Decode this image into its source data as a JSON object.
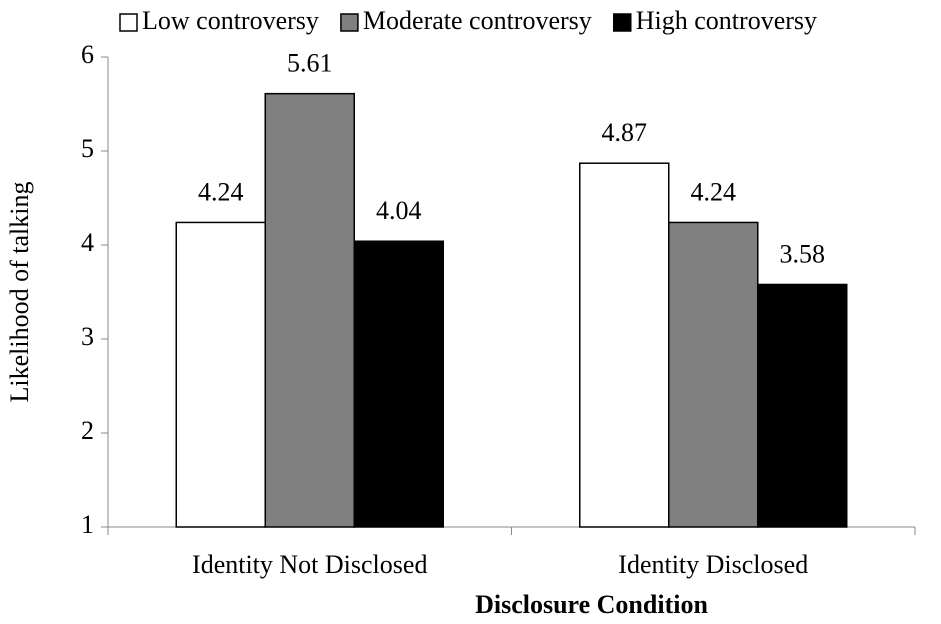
{
  "chart_data": {
    "type": "bar",
    "categories": [
      "Identity Not Disclosed",
      "Identity Disclosed"
    ],
    "series": [
      {
        "name": "Low controversy",
        "color": "#ffffff",
        "values": [
          4.24,
          4.87
        ]
      },
      {
        "name": "Moderate controversy",
        "color": "#808080",
        "values": [
          5.61,
          4.24
        ]
      },
      {
        "name": "High controversy",
        "color": "#000000",
        "values": [
          4.04,
          3.58
        ]
      }
    ],
    "x_label": "Disclosure Condition",
    "y_label": "Likelihood of talking",
    "ylim": [
      1,
      6
    ],
    "yticks": [
      1,
      2,
      3,
      4,
      5,
      6
    ],
    "legend": "top",
    "grid": false
  }
}
